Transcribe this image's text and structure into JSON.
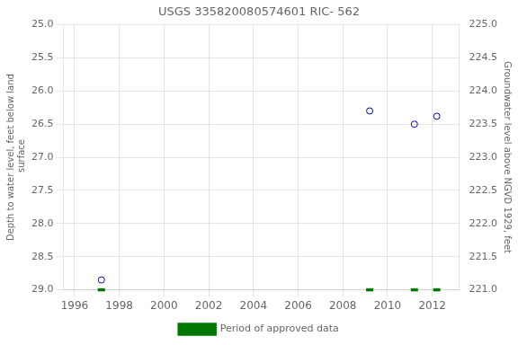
{
  "chart_data": {
    "type": "scatter",
    "title": "USGS 335820080574601 RIC- 562",
    "ylabel": "Depth to water level, feet below land\n surface",
    "y2label": "Groundwater level above NGVD 1929, feet",
    "xlim": [
      1995.5,
      2013.2
    ],
    "xticks": [
      1996,
      1998,
      2000,
      2002,
      2004,
      2006,
      2008,
      2010,
      2012
    ],
    "ylim": [
      29.0,
      25.0
    ],
    "yticks": [
      {
        "value": 25.0,
        "label": "25.0"
      },
      25.5,
      {
        "value": 26.0,
        "label": "26.0"
      },
      26.5,
      {
        "value": 27.0,
        "label": "27.0"
      },
      27.5,
      {
        "value": 28.0,
        "label": "28.0"
      },
      28.5,
      {
        "value": 29.0,
        "label": "29.0"
      }
    ],
    "y2lim": [
      221.0,
      225.0
    ],
    "y2ticks": [
      {
        "value": 221.0,
        "label": "221.0"
      },
      221.5,
      {
        "value": 222.0,
        "label": "222.0"
      },
      222.5,
      {
        "value": 223.0,
        "label": "223.0"
      },
      223.5,
      {
        "value": 224.0,
        "label": "224.0"
      },
      224.5,
      {
        "value": 225.0,
        "label": "225.0"
      }
    ],
    "grid": true,
    "legend": "bottom",
    "series": [
      {
        "x": [
          1997.2,
          2009.2,
          2011.2,
          2012.2
        ],
        "values": [
          28.85,
          26.3,
          26.5,
          26.38
        ],
        "color": "#0000bb",
        "marker": "circle"
      },
      {
        "name": "Period of approved data",
        "x": [
          1997.2,
          2009.2,
          2011.2,
          2012.2
        ],
        "values": [
          29.0,
          29.0,
          29.0,
          29.0
        ],
        "color": "#007700",
        "marker": "line"
      }
    ]
  }
}
